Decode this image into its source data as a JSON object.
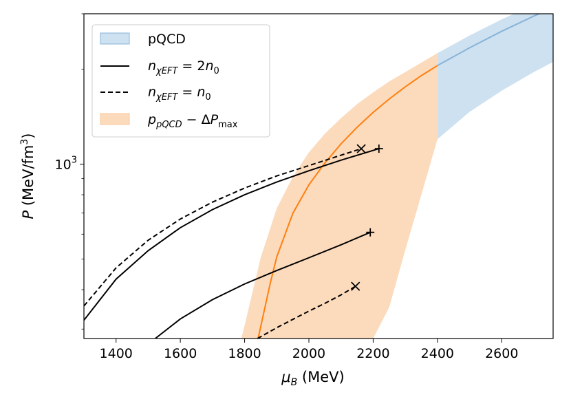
{
  "chart_data": {
    "type": "line",
    "xlabel": "μ_B (MeV)",
    "ylabel": "P (MeV/fm³)",
    "xlim": [
      1300,
      2760
    ],
    "ylim": [
      280,
      3000
    ],
    "yscale": "log",
    "grid": false,
    "legend_position": "top-left",
    "x_ticks": [
      1400,
      1600,
      1800,
      2000,
      2200,
      2400,
      2600
    ],
    "x_tick_labels": [
      "1400",
      "1600",
      "1800",
      "2000",
      "2200",
      "2400",
      "2600"
    ],
    "y_ticks": [
      1000
    ],
    "y_tick_labels": [
      "10³"
    ],
    "legend": [
      {
        "key": "pqcd",
        "label": "pQCD",
        "kind": "band",
        "color": "#a6c8e4"
      },
      {
        "key": "n2",
        "label": "n_χEFT = 2n₀",
        "kind": "solid",
        "color": "#000000"
      },
      {
        "key": "n1",
        "label": "n_χEFT = n₀",
        "kind": "dashed",
        "color": "#000000"
      },
      {
        "key": "dp",
        "label": "p_pQCD − ΔP_max",
        "kind": "band",
        "color": "#fcd3b0"
      }
    ],
    "series": [
      {
        "name": "pQCD",
        "kind": "band",
        "fill": "#a6c8e4",
        "line_color": "#87b3d8",
        "x": [
          2400,
          2500,
          2600,
          2700,
          2760
        ],
        "center": [
          2055,
          2340,
          2640,
          2950,
          3130
        ],
        "lower": [
          1200,
          1465,
          1710,
          1960,
          2110
        ],
        "upper": [
          2250,
          2560,
          2880,
          3200,
          3380
        ]
      },
      {
        "name": "p_pQCD − ΔP_max",
        "kind": "band",
        "fill": "#fcd3b0",
        "line_color": "#ff7f0e",
        "x": [
          1790,
          1800,
          1850,
          1900,
          1950,
          2000,
          2050,
          2100,
          2150,
          2200,
          2250,
          2300,
          2350,
          2400
        ],
        "lower": [
          280,
          280,
          280,
          280,
          280,
          280,
          280,
          280,
          280,
          280,
          352,
          535,
          800,
          1200
        ],
        "upper": [
          280,
          308,
          505,
          724,
          912,
          1090,
          1250,
          1400,
          1550,
          1690,
          1830,
          1960,
          2100,
          2250
        ],
        "center_x": [
          1842,
          1850,
          1880,
          1900,
          1950,
          2000,
          2050,
          2100,
          2150,
          2200,
          2250,
          2300,
          2350,
          2400
        ],
        "center": [
          280,
          305,
          420,
          508,
          698,
          860,
          1010,
          1160,
          1310,
          1460,
          1610,
          1760,
          1910,
          2055
        ]
      },
      {
        "name": "n_χEFT = 2n₀",
        "kind": "solid",
        "segments": [
          {
            "x": [
              1300,
              1400,
              1500,
              1600,
              1700,
              1800,
              1900,
              2000,
              2100,
              2218
            ],
            "y": [
              320,
              432,
              532,
              629,
              718,
              800,
              878,
              953,
              1030,
              1120
            ]
          },
          {
            "x": [
              1522,
              1600,
              1700,
              1800,
              1900,
              2000,
              2100,
              2191
            ],
            "y": [
              280,
              323,
              372,
              417,
              460,
              505,
              555,
              608
            ]
          }
        ]
      },
      {
        "name": "n_χEFT = n₀",
        "kind": "dashed",
        "segments": [
          {
            "x": [
              1300,
              1400,
              1500,
              1600,
              1700,
              1800,
              1900,
              2000,
              2100,
              2163
            ],
            "y": [
              355,
              469,
              574,
              670,
              758,
              840,
              918,
              990,
              1068,
              1120
            ]
          },
          {
            "x": [
              1840,
              1900,
              1950,
              2000,
              2050,
              2100,
              2145
            ],
            "y": [
              280,
              303,
              322,
              342,
              362,
              385,
              410
            ]
          }
        ]
      }
    ],
    "markers": [
      {
        "symbol": "+",
        "x": 2218,
        "y": 1120
      },
      {
        "symbol": "x",
        "x": 2163,
        "y": 1120
      },
      {
        "symbol": "+",
        "x": 2191,
        "y": 608
      },
      {
        "symbol": "x",
        "x": 2145,
        "y": 410
      }
    ]
  }
}
